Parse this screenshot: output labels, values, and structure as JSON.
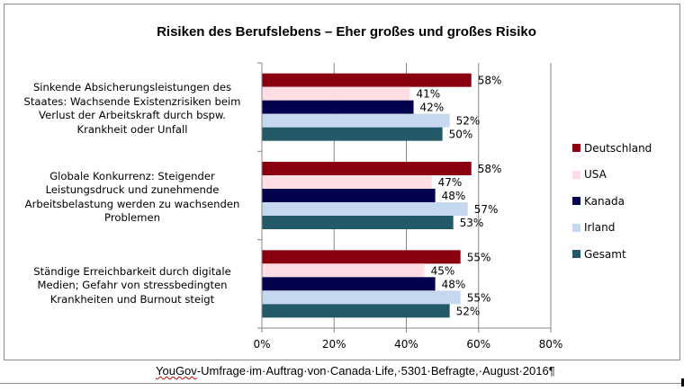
{
  "chart_data": {
    "type": "bar",
    "orientation": "horizontal",
    "title": "Risiken des Berufslebens – Eher großes und großes Risiko",
    "xlabel": "",
    "ylabel": "",
    "xlim": [
      0,
      80
    ],
    "x_ticks": [
      "0%",
      "20%",
      "40%",
      "60%",
      "80%"
    ],
    "grid": true,
    "legend_position": "right",
    "categories": [
      "Sinkende Absicherungsleistungen des Staates: Wachsende Existenzrisiken beim Verlust der Arbeitskraft durch bspw. Krankheit oder Unfall",
      "Globale Konkurrenz: Steigender Leistungsdruck und zunehmende Arbeitsbelastung werden zu wachsenden Problemen",
      "Ständige Erreichbarkeit durch digitale Medien; Gefahr von stressbedingten Krankheiten und Burnout steigt"
    ],
    "category_lines": [
      [
        "Sinkende Absicherungsleistungen des",
        "Staates: Wachsende Existenzrisiken beim",
        "Verlust der Arbeitskraft durch bspw.",
        "Krankheit oder Unfall"
      ],
      [
        "Globale Konkurrenz: Steigender",
        "Leistungsdruck und zunehmende",
        "Arbeitsbelastung werden zu wachsenden",
        "Problemen"
      ],
      [
        "Ständige Erreichbarkeit durch digitale",
        "Medien; Gefahr von stressbedingten",
        "Krankheiten und Burnout steigt"
      ]
    ],
    "series": [
      {
        "name": "Deutschland",
        "color": "#8b0011",
        "values": [
          58,
          58,
          55
        ],
        "labels": [
          "58%",
          "58%",
          "55%"
        ]
      },
      {
        "name": "USA",
        "color": "#ffdde2",
        "values": [
          41,
          47,
          45
        ],
        "labels": [
          "41%",
          "47%",
          "45%"
        ]
      },
      {
        "name": "Kanada",
        "color": "#02024f",
        "values": [
          42,
          48,
          48
        ],
        "labels": [
          "42%",
          "48%",
          "48%"
        ]
      },
      {
        "name": "Irland",
        "color": "#c6d8f0",
        "values": [
          52,
          57,
          55
        ],
        "labels": [
          "52%",
          "57%",
          "55%"
        ]
      },
      {
        "name": "Gesamt",
        "color": "#235968",
        "values": [
          50,
          53,
          52
        ],
        "labels": [
          "50%",
          "53%",
          "52%"
        ]
      }
    ]
  },
  "footer": {
    "source_prefix": "YouGov",
    "source_rest": "-Umfrage·im·Auftrag·von·Canada·Life,·5301·Befragte,·August·2016¶"
  }
}
